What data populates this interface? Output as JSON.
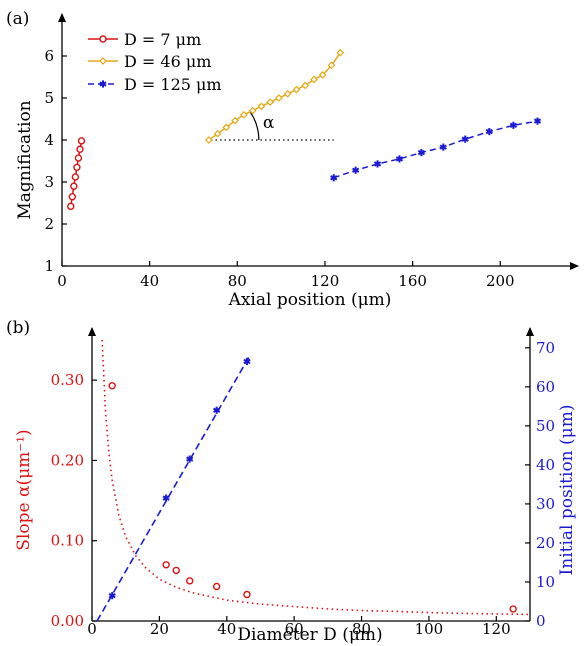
{
  "chart_data": [
    {
      "panel_label": "(a)",
      "type": "line",
      "xlabel": "Axial position (μm)",
      "ylabel": "Magnification",
      "xlim": [
        0,
        230
      ],
      "ylim": [
        1,
        7
      ],
      "xticks": [
        0,
        40,
        80,
        120,
        160,
        200
      ],
      "yticks": [
        1,
        2,
        3,
        4,
        5,
        6
      ],
      "legend_position": "top-left",
      "annotation": {
        "text": "α",
        "x_start": 68,
        "x_end": 124,
        "y": 4.0,
        "style": "dotted"
      },
      "series": [
        {
          "name": "D = 7 μm",
          "color": "#dd1111",
          "marker": "circle",
          "line": "solid",
          "x": [
            4.0,
            4.7,
            5.4,
            6.1,
            6.8,
            7.5,
            8.2,
            8.9
          ],
          "y": [
            2.42,
            2.65,
            2.9,
            3.12,
            3.35,
            3.57,
            3.78,
            3.98
          ]
        },
        {
          "name": "D = 46 μm",
          "color": "#e6a817",
          "marker": "diamond",
          "line": "solid",
          "x": [
            67,
            71,
            75,
            79,
            83,
            87,
            91,
            95,
            99,
            103,
            107,
            111,
            115,
            119,
            123,
            127
          ],
          "y": [
            4.0,
            4.15,
            4.3,
            4.46,
            4.6,
            4.7,
            4.8,
            4.9,
            5.0,
            5.1,
            5.2,
            5.3,
            5.44,
            5.55,
            5.78,
            6.08
          ]
        },
        {
          "name": "D = 125 μm",
          "color": "#1a1ad6",
          "marker": "star",
          "line": "dashed",
          "x": [
            124,
            134,
            144,
            154,
            164,
            174,
            184,
            195,
            206,
            217
          ],
          "y": [
            3.1,
            3.28,
            3.43,
            3.55,
            3.7,
            3.83,
            4.02,
            4.2,
            4.35,
            4.45
          ]
        }
      ]
    },
    {
      "panel_label": "(b)",
      "type": "scatter",
      "xlabel": "Diameter D (μm)",
      "ylabel_left": "Slope α(μm⁻¹)",
      "ylabel_right": "Initial position (μm)",
      "xlim": [
        0,
        130
      ],
      "ylim_left": [
        0,
        0.35
      ],
      "ylim_right": [
        0,
        72
      ],
      "xticks": [
        0,
        20,
        40,
        60,
        80,
        100,
        120
      ],
      "yticks_left": [
        "0.00",
        "0.10",
        "0.20",
        "0.30"
      ],
      "yticks_right": [
        0,
        10,
        20,
        30,
        40,
        50,
        60,
        70
      ],
      "left_color": "#dd1111",
      "right_color": "#1a1ad6",
      "series": [
        {
          "axis": "left",
          "color": "#dd1111",
          "marker": "open-circle",
          "x": [
            6,
            22,
            25,
            29,
            37,
            46,
            125
          ],
          "y": [
            0.293,
            0.07,
            0.063,
            0.05,
            0.043,
            0.033,
            0.015
          ]
        },
        {
          "axis": "left",
          "color": "#dd1111",
          "line": "dotted",
          "fit": "1/x",
          "x": [
            3,
            4,
            5,
            6,
            8,
            10,
            13,
            16,
            20,
            25,
            30,
            40,
            50,
            60,
            70,
            80,
            90,
            100,
            110,
            120,
            130
          ],
          "y": [
            0.35,
            0.262,
            0.21,
            0.175,
            0.131,
            0.105,
            0.081,
            0.066,
            0.052,
            0.042,
            0.035,
            0.026,
            0.021,
            0.018,
            0.015,
            0.013,
            0.012,
            0.0105,
            0.0095,
            0.0088,
            0.0081
          ]
        },
        {
          "axis": "right",
          "color": "#1a1ad6",
          "marker": "star",
          "x": [
            6,
            22,
            29,
            37,
            46
          ],
          "y": [
            6.5,
            31.5,
            41.5,
            54.0,
            66.5
          ]
        },
        {
          "axis": "right",
          "color": "#1a1ad6",
          "line": "dashed",
          "fit": "linear",
          "x": [
            1.5,
            46.5
          ],
          "y": [
            0.0,
            67.5
          ]
        }
      ]
    }
  ]
}
